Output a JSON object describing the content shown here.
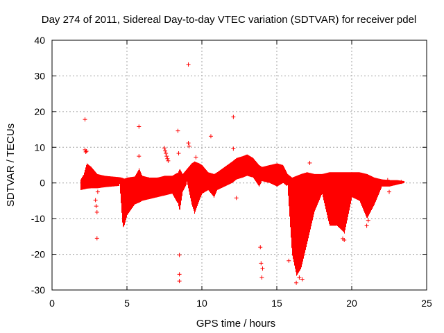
{
  "chart_data": {
    "type": "scatter",
    "title": "Day 274 of 2011, Sidereal Day-to-day VTEC variation (SDTVAR) for receiver pdel",
    "xlabel": "GPS time / hours",
    "ylabel": "SDTVAR / TECUs",
    "xlim": [
      0,
      25
    ],
    "ylim": [
      -30,
      40
    ],
    "xticks": [
      "0",
      "5",
      "10",
      "15",
      "20",
      "25"
    ],
    "yticks": [
      "-30",
      "-20",
      "-10",
      "0",
      "10",
      "20",
      "30",
      "40"
    ],
    "grid": true,
    "marker": "+",
    "color": "#ff0000",
    "series_name": "SDTVAR",
    "bands": [
      {
        "x": 1.9,
        "ymin": -2.0,
        "ymax": 1.0
      },
      {
        "x": 2.1,
        "ymin": -1.8,
        "ymax": 2.5
      },
      {
        "x": 2.3,
        "ymin": -1.6,
        "ymax": 5.5
      },
      {
        "x": 2.6,
        "ymin": -1.5,
        "ymax": 4.5
      },
      {
        "x": 3.0,
        "ymin": -1.5,
        "ymax": 2.5
      },
      {
        "x": 3.5,
        "ymin": -1.2,
        "ymax": 2.0
      },
      {
        "x": 4.0,
        "ymin": -1.0,
        "ymax": 1.8
      },
      {
        "x": 4.5,
        "ymin": -0.8,
        "ymax": 1.6
      },
      {
        "x": 4.7,
        "ymin": -12.5,
        "ymax": 1.4
      },
      {
        "x": 4.8,
        "ymin": -12.0,
        "ymax": 1.2
      },
      {
        "x": 5.0,
        "ymin": -9.0,
        "ymax": 1.5
      },
      {
        "x": 5.5,
        "ymin": -6.0,
        "ymax": 1.8
      },
      {
        "x": 5.8,
        "ymin": -5.5,
        "ymax": 4.0
      },
      {
        "x": 6.0,
        "ymin": -5.0,
        "ymax": 2.0
      },
      {
        "x": 6.5,
        "ymin": -4.5,
        "ymax": 1.5
      },
      {
        "x": 7.0,
        "ymin": -4.0,
        "ymax": 1.5
      },
      {
        "x": 7.5,
        "ymin": -3.5,
        "ymax": 2.0
      },
      {
        "x": 8.0,
        "ymin": -3.0,
        "ymax": 2.0
      },
      {
        "x": 8.4,
        "ymin": -6.0,
        "ymax": 3.0
      },
      {
        "x": 8.5,
        "ymin": -8.0,
        "ymax": 4.0
      },
      {
        "x": 8.7,
        "ymin": -2.5,
        "ymax": 2.5
      },
      {
        "x": 9.0,
        "ymin": 0.0,
        "ymax": 4.0
      },
      {
        "x": 9.3,
        "ymin": -6.0,
        "ymax": 5.5
      },
      {
        "x": 9.5,
        "ymin": -8.5,
        "ymax": 6.0
      },
      {
        "x": 9.8,
        "ymin": -5.0,
        "ymax": 5.5
      },
      {
        "x": 10.0,
        "ymin": -3.0,
        "ymax": 5.0
      },
      {
        "x": 10.4,
        "ymin": -2.0,
        "ymax": 3.0
      },
      {
        "x": 10.8,
        "ymin": -4.0,
        "ymax": 2.5
      },
      {
        "x": 11.0,
        "ymin": -2.0,
        "ymax": 3.0
      },
      {
        "x": 11.5,
        "ymin": -1.0,
        "ymax": 4.5
      },
      {
        "x": 12.0,
        "ymin": 0.0,
        "ymax": 6.0
      },
      {
        "x": 12.3,
        "ymin": 1.0,
        "ymax": 7.0
      },
      {
        "x": 12.7,
        "ymin": 1.5,
        "ymax": 7.5
      },
      {
        "x": 13.0,
        "ymin": 2.0,
        "ymax": 8.0
      },
      {
        "x": 13.4,
        "ymin": 1.5,
        "ymax": 7.0
      },
      {
        "x": 13.8,
        "ymin": -1.0,
        "ymax": 5.0
      },
      {
        "x": 14.0,
        "ymin": 0.5,
        "ymax": 4.5
      },
      {
        "x": 14.5,
        "ymin": 0.0,
        "ymax": 5.0
      },
      {
        "x": 15.0,
        "ymin": -1.0,
        "ymax": 5.5
      },
      {
        "x": 15.4,
        "ymin": 0.0,
        "ymax": 5.0
      },
      {
        "x": 15.7,
        "ymin": -1.0,
        "ymax": 2.5
      },
      {
        "x": 16.0,
        "ymin": -20.0,
        "ymax": 1.5
      },
      {
        "x": 16.3,
        "ymin": -26.0,
        "ymax": 2.0
      },
      {
        "x": 16.6,
        "ymin": -24.0,
        "ymax": 2.5
      },
      {
        "x": 17.0,
        "ymin": -17.0,
        "ymax": 3.0
      },
      {
        "x": 17.5,
        "ymin": -8.0,
        "ymax": 2.5
      },
      {
        "x": 18.0,
        "ymin": -3.0,
        "ymax": 2.5
      },
      {
        "x": 18.5,
        "ymin": -12.0,
        "ymax": 3.0
      },
      {
        "x": 19.0,
        "ymin": -12.0,
        "ymax": 3.0
      },
      {
        "x": 19.5,
        "ymin": -14.0,
        "ymax": 3.0
      },
      {
        "x": 20.0,
        "ymin": -4.0,
        "ymax": 3.0
      },
      {
        "x": 20.5,
        "ymin": -5.0,
        "ymax": 3.0
      },
      {
        "x": 21.0,
        "ymin": -10.0,
        "ymax": 2.5
      },
      {
        "x": 21.5,
        "ymin": -6.0,
        "ymax": 1.5
      },
      {
        "x": 22.0,
        "ymin": -1.0,
        "ymax": 1.0
      },
      {
        "x": 22.5,
        "ymin": -1.0,
        "ymax": 0.8
      },
      {
        "x": 23.0,
        "ymin": -0.5,
        "ymax": 0.8
      },
      {
        "x": 23.5,
        "ymin": 0.0,
        "ymax": 0.5
      }
    ],
    "points": [
      [
        2.2,
        17.8
      ],
      [
        2.2,
        9.3
      ],
      [
        2.25,
        8.7
      ],
      [
        2.3,
        8.9
      ],
      [
        2.9,
        -4.8
      ],
      [
        2.95,
        -6.5
      ],
      [
        3.0,
        -8.2
      ],
      [
        3.0,
        -15.5
      ],
      [
        3.05,
        -2.5
      ],
      [
        5.8,
        15.8
      ],
      [
        5.8,
        7.5
      ],
      [
        7.5,
        9.8
      ],
      [
        7.55,
        9.0
      ],
      [
        7.6,
        8.3
      ],
      [
        7.65,
        7.5
      ],
      [
        7.7,
        6.8
      ],
      [
        7.75,
        6.2
      ],
      [
        8.4,
        14.6
      ],
      [
        8.45,
        8.3
      ],
      [
        8.5,
        -20.2
      ],
      [
        8.5,
        -25.6
      ],
      [
        8.5,
        -27.5
      ],
      [
        9.1,
        33.2
      ],
      [
        9.1,
        11.2
      ],
      [
        9.15,
        10.3
      ],
      [
        9.6,
        7.2
      ],
      [
        10.6,
        13.1
      ],
      [
        12.1,
        18.5
      ],
      [
        12.1,
        9.6
      ],
      [
        12.3,
        -4.2
      ],
      [
        13.9,
        -18.0
      ],
      [
        13.95,
        -22.5
      ],
      [
        14.0,
        -26.5
      ],
      [
        14.05,
        -24.0
      ],
      [
        15.8,
        -21.8
      ],
      [
        16.3,
        -28.0
      ],
      [
        16.5,
        -26.5
      ],
      [
        16.7,
        -27.0
      ],
      [
        17.2,
        5.6
      ],
      [
        19.4,
        -15.6
      ],
      [
        19.5,
        -16.0
      ],
      [
        21.0,
        -12.0
      ],
      [
        21.1,
        -10.5
      ],
      [
        22.4,
        0.8
      ],
      [
        22.5,
        -2.5
      ],
      [
        23.3,
        0.3
      ]
    ]
  }
}
